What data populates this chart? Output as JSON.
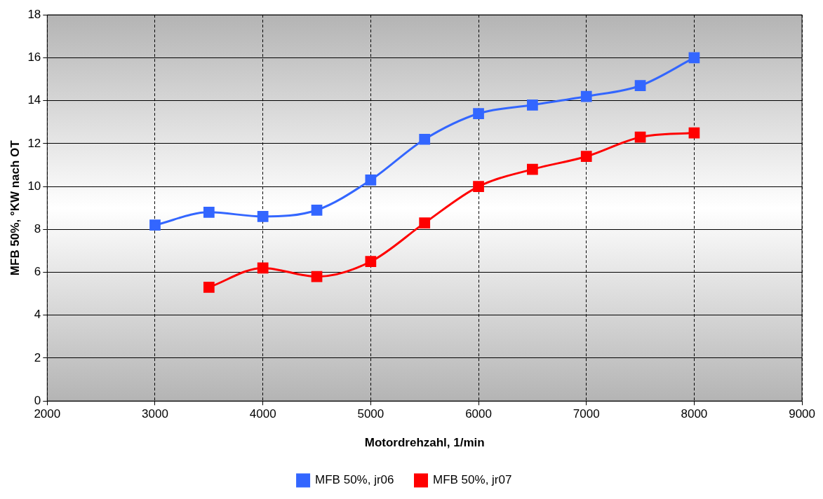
{
  "chart_data": {
    "type": "line",
    "xlabel": "Motordrehzahl, 1/min",
    "ylabel": "MFB 50%, °KW nach OT",
    "xlim": [
      2000,
      9000
    ],
    "xticks": [
      2000,
      3000,
      4000,
      5000,
      6000,
      7000,
      8000,
      9000
    ],
    "ylim": [
      0,
      18
    ],
    "yticks": [
      0,
      2,
      4,
      6,
      8,
      10,
      12,
      14,
      16,
      18
    ],
    "grid": true,
    "legend": "bottom",
    "marker": "square",
    "line_style": "solid",
    "series": [
      {
        "name": "MFB 50%, jr06",
        "color": "#3366ff",
        "x": [
          3000,
          3500,
          4000,
          4500,
          5000,
          5500,
          6000,
          6500,
          7000,
          7500,
          8000
        ],
        "values": [
          8.2,
          8.8,
          8.6,
          8.9,
          10.3,
          12.2,
          13.4,
          13.8,
          14.2,
          14.7,
          16.0
        ]
      },
      {
        "name": "MFB 50%, jr07",
        "color": "#ff0000",
        "x": [
          3500,
          4000,
          4500,
          5000,
          5500,
          6000,
          6500,
          7000,
          7500,
          8000
        ],
        "values": [
          5.3,
          6.2,
          5.8,
          6.5,
          8.3,
          10.0,
          10.8,
          11.4,
          12.3,
          12.5
        ]
      }
    ]
  }
}
